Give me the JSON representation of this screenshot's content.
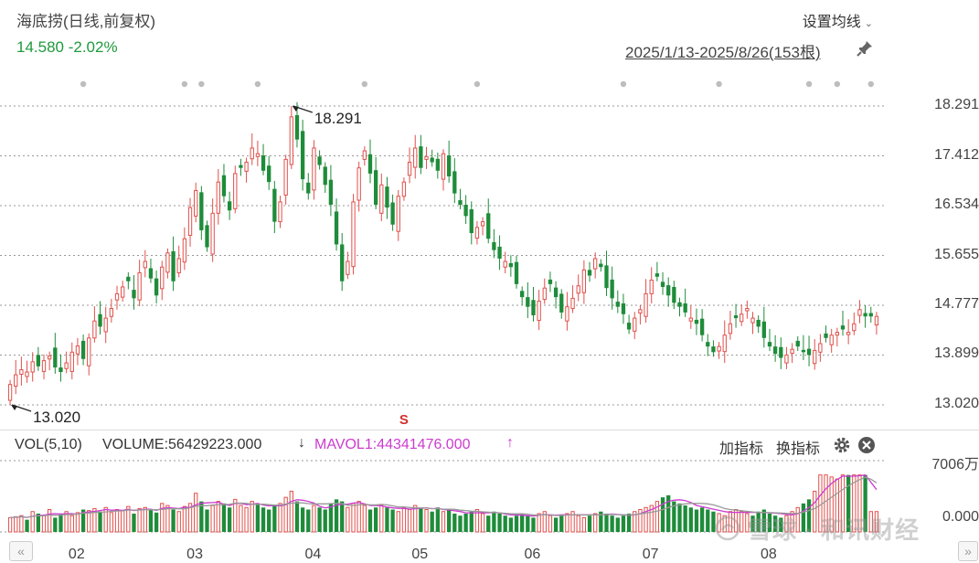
{
  "header": {
    "title": "海底捞(日线,前复权)",
    "price_change": "14.580 -2.02%",
    "ma_setting_label": "设置均线",
    "date_range": "2025/1/13-2025/8/26(153根)"
  },
  "volume_panel": {
    "vol_label": "VOL(5,10)",
    "volume_text": "VOLUME:56429223.000",
    "volume_arrow": "↓",
    "mavol_text": "MAVOL1:44341476.000",
    "mavol_arrow": "↑",
    "add_indicator_label": "加指标",
    "switch_indicator_label": "换指标",
    "y_max_label": "7006万",
    "y_min_label": "0.000"
  },
  "watermark": "雪球 · 和讯财经",
  "colors": {
    "up": "#e0504b",
    "down": "#1e8c3a",
    "mavol1": "#cc3bd0",
    "mavol2": "#999999"
  },
  "chart_data": [
    {
      "type": "candlestick",
      "series_name": "海底捞",
      "ylim": [
        12.9,
        18.6
      ],
      "y_ticks": [
        18.291,
        17.412,
        16.534,
        15.655,
        14.777,
        13.899,
        13.02
      ],
      "y_tick_labels": [
        "18.291",
        "17.412",
        "16.534",
        "15.655",
        "14.777",
        "13.899",
        "13.020"
      ],
      "x_ticks": [
        {
          "label": "02",
          "index": 12
        },
        {
          "label": "03",
          "index": 33
        },
        {
          "label": "04",
          "index": 54
        },
        {
          "label": "05",
          "index": 73
        },
        {
          "label": "06",
          "index": 93
        },
        {
          "label": "07",
          "index": 114
        },
        {
          "label": "08",
          "index": 135
        }
      ],
      "annotations": [
        {
          "text": "18.291",
          "index": 50,
          "value": 18.291
        },
        {
          "text": "13.020",
          "index": 0,
          "value": 13.02
        }
      ],
      "grid": true,
      "num_candles": 153,
      "close": [
        13.38,
        13.55,
        13.64,
        13.6,
        13.78,
        13.7,
        13.8,
        13.88,
        13.68,
        13.6,
        13.76,
        13.95,
        14.06,
        13.83,
        14.2,
        14.5,
        14.4,
        14.55,
        14.72,
        14.98,
        15.1,
        15.2,
        14.9,
        15.35,
        15.55,
        15.25,
        14.95,
        15.45,
        15.7,
        15.2,
        15.6,
        15.95,
        16.5,
        16.8,
        16.1,
        15.8,
        16.4,
        16.95,
        16.7,
        16.45,
        17.1,
        17.2,
        17.3,
        17.55,
        17.45,
        17.15,
        16.95,
        16.25,
        16.6,
        17.35,
        18.1,
        17.7,
        17.0,
        16.75,
        17.55,
        17.25,
        16.9,
        16.55,
        15.85,
        15.2,
        15.55,
        16.6,
        17.2,
        17.5,
        17.1,
        16.55,
        16.9,
        16.5,
        16.2,
        16.7,
        16.95,
        17.3,
        17.55,
        17.2,
        17.4,
        17.3,
        17.15,
        17.45,
        17.05,
        16.75,
        16.55,
        16.35,
        16.05,
        16.15,
        16.25,
        15.95,
        15.75,
        15.6,
        15.55,
        15.45,
        15.15,
        14.92,
        14.75,
        14.6,
        14.85,
        15.08,
        15.15,
        14.92,
        14.65,
        14.75,
        14.9,
        15.12,
        15.4,
        15.3,
        15.6,
        15.45,
        15.08,
        14.9,
        14.75,
        14.62,
        14.35,
        14.55,
        14.7,
        14.98,
        15.22,
        15.28,
        15.1,
        14.95,
        14.82,
        14.75,
        14.65,
        14.55,
        14.45,
        14.25,
        14.05,
        13.95,
        14.05,
        14.25,
        14.45,
        14.55,
        14.62,
        14.72,
        14.55,
        14.4,
        14.2,
        14.05,
        13.92,
        13.85,
        13.9,
        14.0,
        14.05,
        13.95,
        13.9,
        13.98,
        14.1,
        14.2,
        14.25,
        14.3,
        14.35,
        14.3,
        14.45,
        14.7,
        14.58,
        14.58,
        14.58
      ],
      "note": "close values estimated per candle from gridlines"
    },
    {
      "type": "bar",
      "series_name": "VOLUME",
      "ylim": [
        0,
        70060000
      ],
      "y_tick_labels": [
        "7006万",
        "0.000"
      ],
      "volume": [
        14,
        15,
        16,
        12,
        20,
        18,
        16,
        22,
        14,
        18,
        20,
        16,
        19,
        22,
        21,
        23,
        20,
        24,
        19,
        22,
        21,
        25,
        18,
        23,
        24,
        22,
        19,
        28,
        26,
        22,
        20,
        25,
        28,
        38,
        30,
        22,
        26,
        30,
        28,
        24,
        32,
        26,
        24,
        30,
        28,
        24,
        22,
        26,
        28,
        34,
        40,
        30,
        24,
        22,
        26,
        24,
        22,
        28,
        32,
        30,
        24,
        28,
        30,
        26,
        22,
        24,
        26,
        24,
        22,
        20,
        24,
        22,
        26,
        24,
        22,
        20,
        24,
        20,
        22,
        18,
        16,
        18,
        20,
        22,
        18,
        16,
        20,
        18,
        16,
        14,
        16,
        18,
        16,
        14,
        18,
        20,
        16,
        14,
        16,
        18,
        20,
        16,
        14,
        16,
        18,
        20,
        18,
        16,
        14,
        16,
        18,
        20,
        22,
        24,
        26,
        30,
        34,
        36,
        30,
        28,
        26,
        24,
        22,
        24,
        22,
        20,
        18,
        16,
        20,
        22,
        20,
        18,
        16,
        20,
        22,
        18,
        16,
        14,
        16,
        20,
        24,
        28,
        32,
        40,
        56,
        56,
        54,
        52,
        56,
        56,
        56,
        56,
        56
      ],
      "mavol1_last": 44341476,
      "volume_last": 56429223,
      "note": "volume values estimated in units of 1e6 shares"
    }
  ]
}
